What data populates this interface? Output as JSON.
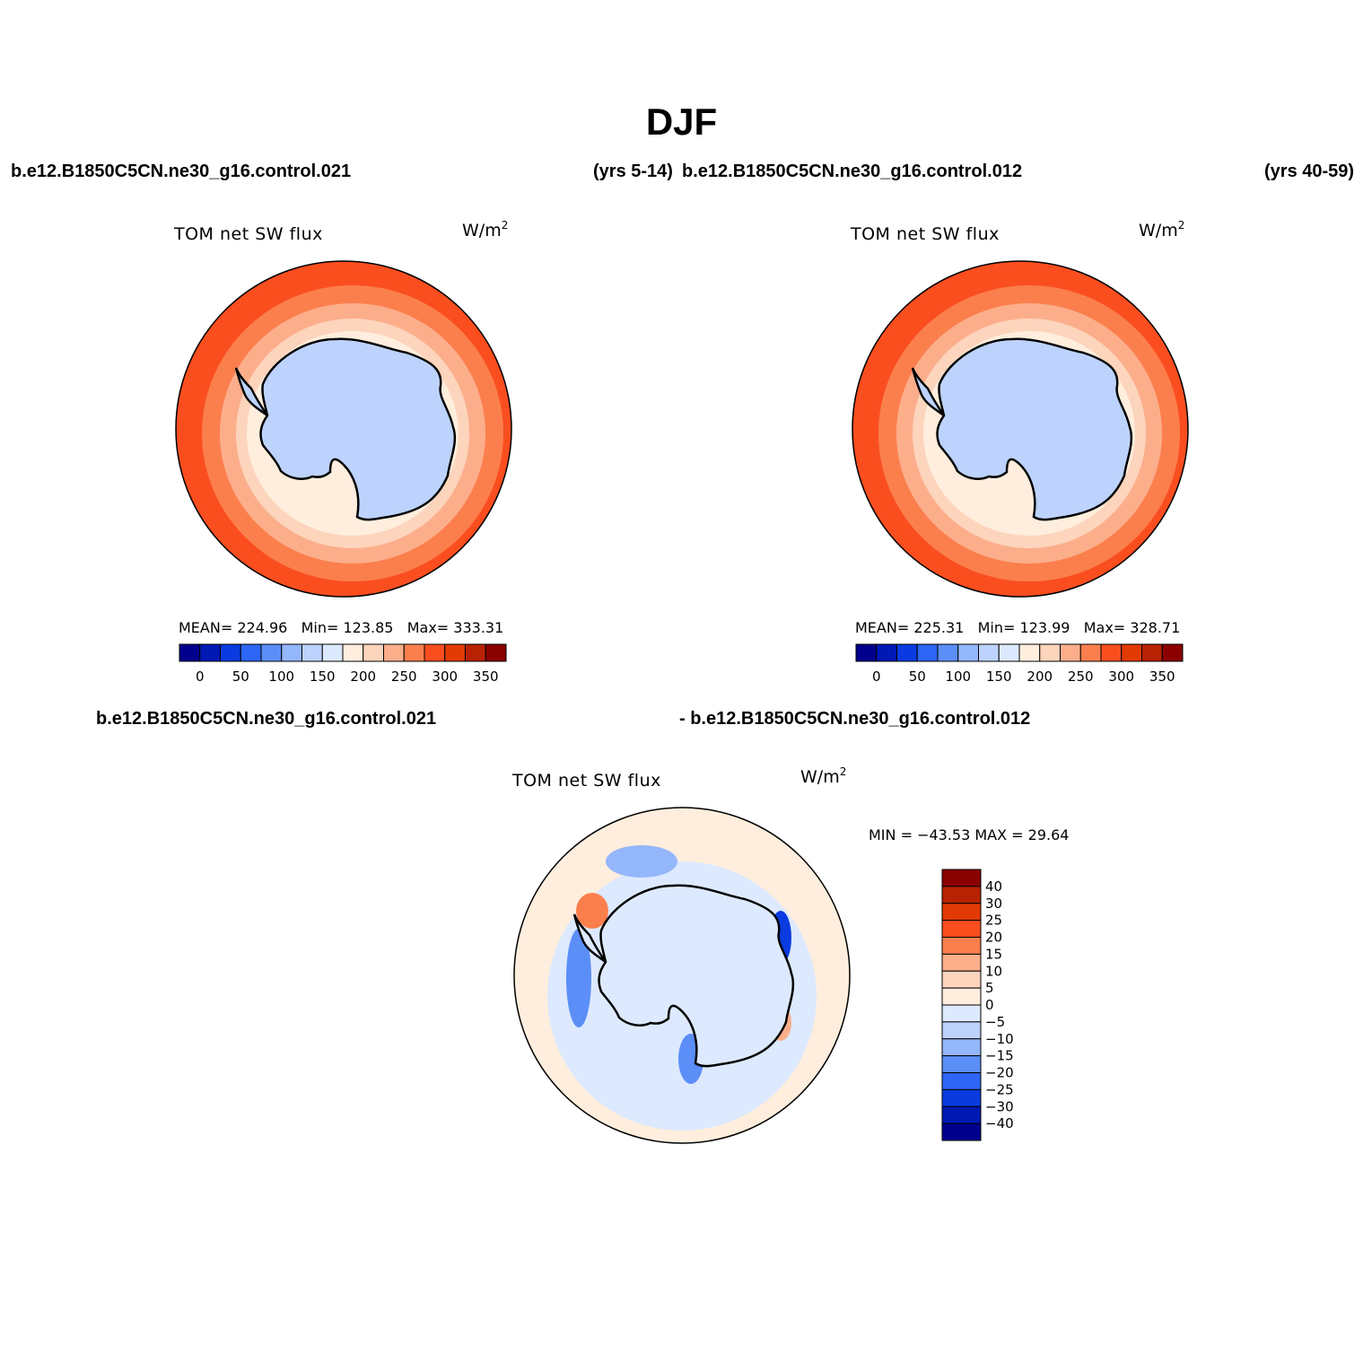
{
  "title": "DJF",
  "header": {
    "left_run": "b.e12.B1850C5CN.ne30_g16.control.021",
    "left_years": "(yrs 5-14)",
    "right_run": "b.e12.B1850C5CN.ne30_g16.control.012",
    "right_years": "(yrs 40-59)"
  },
  "panels": {
    "left": {
      "title": "TOM net SW flux",
      "units": "W/m",
      "units_sup": "2",
      "stats": {
        "mean_label": "MEAN=",
        "mean": "224.96",
        "min_label": "Min=",
        "min": "123.85",
        "max_label": "Max=",
        "max": "333.31"
      }
    },
    "right": {
      "title": "TOM net SW flux",
      "units": "W/m",
      "units_sup": "2",
      "stats": {
        "mean_label": "MEAN=",
        "mean": "225.31",
        "min_label": "Min=",
        "min": "123.99",
        "max_label": "Max=",
        "max": "328.71"
      }
    },
    "diff": {
      "header_left": "b.e12.B1850C5CN.ne30_g16.control.021",
      "header_right": "- b.e12.B1850C5CN.ne30_g16.control.012",
      "title": "TOM net SW flux",
      "units": "W/m",
      "units_sup": "2",
      "minmax": "MIN = −43.53 MAX =  29.64"
    }
  },
  "colorbar_abs": {
    "colors": [
      "#00008c",
      "#0018b4",
      "#0a3be0",
      "#2d66f5",
      "#5b8ef7",
      "#94b6fb",
      "#bdd3fd",
      "#dde9fe",
      "#ffeedd",
      "#fdd4bc",
      "#fcae8b",
      "#fb7f4d",
      "#fa4e1f",
      "#e23a05",
      "#b82203",
      "#8a0000"
    ],
    "labels": [
      "0",
      "50",
      "100",
      "150",
      "200",
      "250",
      "300",
      "350"
    ]
  },
  "colorbar_diff": {
    "colors": [
      "#8a0000",
      "#b82203",
      "#e23a05",
      "#fa4e1f",
      "#fb7f4d",
      "#fcae8b",
      "#fdd4bc",
      "#ffeedd",
      "#dde9fe",
      "#bdd3fd",
      "#94b6fb",
      "#5b8ef7",
      "#2d66f5",
      "#0a3be0",
      "#0018b4",
      "#00008c"
    ],
    "labels": [
      "40",
      "30",
      "25",
      "20",
      "15",
      "10",
      "5",
      "0",
      "−5",
      "−10",
      "−15",
      "−20",
      "−25",
      "−30",
      "−40"
    ]
  },
  "field_colors": {
    "ocean_far": "#fa4e1f",
    "ocean_edge": "#e23a05",
    "ring1": "#fb7f4d",
    "ring2": "#fcae8b",
    "ring3": "#fdd4bc",
    "ring4": "#ffeedd",
    "ice": "#bdd3fd",
    "diff_pos": "#ffeedd",
    "diff_neg": "#dde9fe"
  }
}
